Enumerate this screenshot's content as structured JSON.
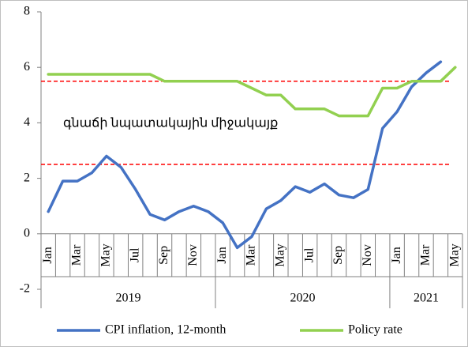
{
  "chart_data": {
    "type": "line",
    "categories": [
      "Jan",
      null,
      "Mar",
      null,
      "May",
      null,
      "Jul",
      null,
      "Sep",
      null,
      "Nov",
      null,
      "Jan",
      null,
      "Mar",
      null,
      "May",
      null,
      "Jul",
      null,
      "Sep",
      null,
      "Nov",
      null,
      "Jan",
      null,
      "Mar",
      null,
      "May"
    ],
    "groups": [
      {
        "label": "2019",
        "count": 12
      },
      {
        "label": "2020",
        "count": 12
      },
      {
        "label": "2021",
        "count": 5
      }
    ],
    "series": [
      {
        "name": "CPI inflation, 12-month",
        "color": "#4472c4",
        "values": [
          0.8,
          1.9,
          1.9,
          2.2,
          2.8,
          2.4,
          1.6,
          0.7,
          0.5,
          0.8,
          1.0,
          0.8,
          0.4,
          -0.5,
          -0.1,
          0.9,
          1.2,
          1.7,
          1.5,
          1.8,
          1.4,
          1.3,
          1.6,
          3.8,
          4.4,
          5.3,
          5.8,
          6.2,
          null
        ]
      },
      {
        "name": "Policy rate",
        "color": "#92d050",
        "values": [
          5.75,
          5.75,
          5.75,
          5.75,
          5.75,
          5.75,
          5.75,
          5.75,
          5.5,
          5.5,
          5.5,
          5.5,
          5.5,
          5.5,
          5.25,
          5.0,
          5.0,
          4.5,
          4.5,
          4.5,
          4.25,
          4.25,
          4.25,
          5.25,
          5.25,
          5.5,
          5.5,
          5.5,
          6.0
        ]
      }
    ],
    "target_band": [
      2.5,
      5.5
    ],
    "target_color": "#ff0000",
    "annotation": "գնաճի նպատակային միջակայք",
    "ylim": [
      -2,
      8
    ],
    "yticks": [
      -2,
      0,
      2,
      4,
      6,
      8
    ],
    "grid": false,
    "legend": "bottom"
  }
}
